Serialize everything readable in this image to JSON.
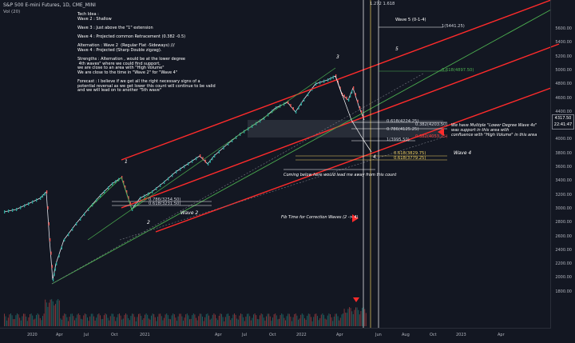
{
  "header": {
    "symbol": "S&P 500 E-mini Futures, 1D, CME_MINI",
    "volume_label": "Vol (20)"
  },
  "notes": {
    "lines": [
      "Tech Idea :",
      "Wave 2 : Shallow",
      "",
      "Wave 3 : Just above the \"1\" extension",
      "",
      "Wave 4 : Projected common Retracement (0.382 -0.5)",
      "",
      "Alternation : Wave 2  (Regular Flat -Sideways) ///",
      "Wave 4 : Projected (Sharp Double zigzag).",
      "",
      "Strengths : Alternation , would be at the lower degree",
      " 4th waves\" where we could find support,",
      "we are close to an area with \"High Volume\"",
      "We are close to the time in \"Wave 2\" for \"Wave 4\"",
      "",
      "Forecast : I believe if we get all the right necessary signs of a",
      "potential reversal as we get lower this count will continue to be valid",
      "and we will lead on to another \"5th wave\""
    ]
  },
  "fib_labels": {
    "top_ext": "1.272  1.618",
    "wave5_proj": "Wave 5 (0-1-4)",
    "ext_1": "1(5441.25)",
    "ext_0618": "0.618(4897.50)",
    "ret_0618": "0.618(4224.25)",
    "ret_0382": "0.382(4203.50)",
    "ret_0786": "0.786(4125.25)",
    "ret_0382_red": "0.382(4053.25)",
    "ret_1": "1(3995.50)",
    "ret_0618_low": "0.618(3829.75)",
    "ret_0618_low2": "0.618(3779.25)",
    "w2_0786": "0.786(3254.50)",
    "w2_0618": "0.618(3231.50)"
  },
  "annotations": {
    "support_note": "We have Multiple \"Lower Degree Wave 4s\"\nwas support in this area with\nconfluence with \"High Volume\" in this area",
    "wave4_label": "Wave 4",
    "wave2_label": "Wave 2",
    "coming_below": "Coming below here would lead me away from this count",
    "fib_time": "Fib Time for Correction Waves (2 -> 4)",
    "count_5": "5",
    "count_4": "4",
    "count_3": "3",
    "count_2": "2",
    "count_1": "1"
  },
  "price_axis": {
    "labels": [
      "5600.00",
      "5400.00",
      "5200.00",
      "5000.00",
      "4800.00",
      "4600.00",
      "4400.00",
      "4200.00",
      "4000.00",
      "3800.00",
      "3600.00",
      "3400.00",
      "3200.00",
      "3000.00",
      "2800.00",
      "2600.00",
      "2400.00",
      "2200.00",
      "2000.00",
      "1800.00"
    ],
    "last_price": "4317.50",
    "last_sub": "22:41:47"
  },
  "time_axis": {
    "labels": [
      "2020",
      "Apr",
      "Jul",
      "Oct",
      "2021",
      "Apr",
      "Jul",
      "Oct",
      "2022",
      "Apr",
      "Jun",
      "Aug",
      "Oct",
      "2023",
      "Apr"
    ]
  },
  "colors": {
    "channel": "#ff2b2b",
    "up": "#26a69a",
    "down": "#ef5350",
    "accent": "#f0d060",
    "green_line": "#4caf50"
  }
}
